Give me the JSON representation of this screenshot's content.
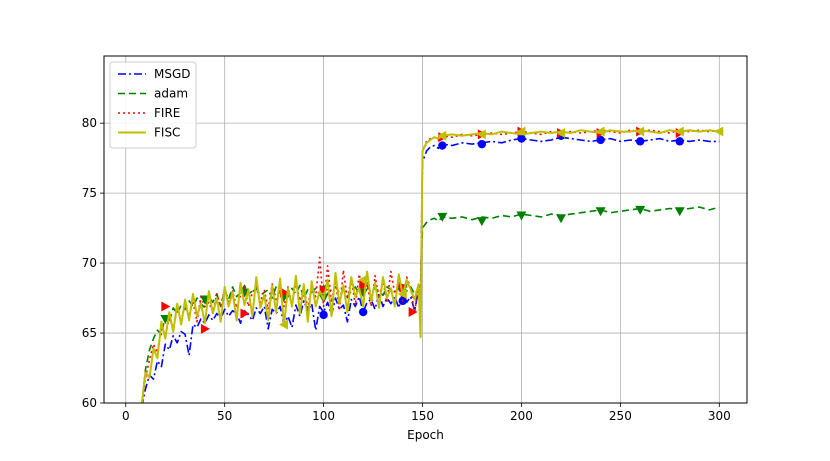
{
  "chart_data": {
    "type": "line",
    "title": "",
    "xlabel": "Epoch",
    "ylabel": "",
    "xlim": [
      -11,
      314
    ],
    "ylim": [
      60,
      84.8
    ],
    "xticks": [
      0,
      50,
      100,
      150,
      200,
      250,
      300
    ],
    "yticks": [
      60,
      65,
      70,
      75,
      80
    ],
    "grid": true,
    "legend_position": "top-left",
    "series": [
      {
        "name": "MSGD",
        "color": "#0000ff",
        "dash": "8,3,2,3",
        "marker": "circle",
        "x": [
          8,
          10,
          12,
          14,
          16,
          18,
          20,
          22,
          24,
          26,
          28,
          30,
          32,
          34,
          36,
          38,
          40,
          42,
          44,
          46,
          48,
          50,
          52,
          54,
          56,
          58,
          60,
          62,
          64,
          66,
          68,
          70,
          72,
          74,
          76,
          78,
          80,
          82,
          84,
          86,
          88,
          90,
          92,
          94,
          96,
          98,
          100,
          102,
          104,
          106,
          108,
          110,
          112,
          114,
          116,
          118,
          120,
          122,
          124,
          126,
          128,
          130,
          132,
          134,
          136,
          138,
          140,
          142,
          144,
          146,
          148,
          149,
          150,
          152,
          154,
          156,
          158,
          160,
          165,
          170,
          175,
          180,
          185,
          190,
          195,
          200,
          205,
          210,
          215,
          220,
          225,
          230,
          235,
          240,
          245,
          250,
          255,
          260,
          265,
          270,
          275,
          280,
          285,
          290,
          295,
          300
        ],
        "y": [
          59.7,
          61.0,
          62.0,
          61.7,
          63.0,
          62.6,
          64.2,
          63.8,
          64.8,
          64.3,
          65.1,
          64.9,
          63.4,
          65.6,
          65.4,
          66.0,
          65.7,
          66.3,
          65.9,
          66.4,
          66.0,
          66.7,
          66.2,
          66.6,
          66.4,
          65.7,
          66.6,
          66.3,
          65.9,
          66.8,
          66.4,
          66.9,
          65.3,
          66.7,
          66.4,
          66.9,
          65.6,
          66.2,
          65.4,
          67.0,
          66.2,
          67.3,
          66.6,
          67.1,
          65.2,
          66.9,
          66.5,
          67.2,
          66.3,
          67.5,
          66.7,
          67.0,
          65.8,
          67.4,
          66.9,
          67.6,
          66.5,
          67.2,
          67.4,
          66.7,
          67.8,
          66.9,
          67.5,
          67.1,
          67.6,
          66.8,
          67.9,
          67.2,
          67.6,
          66.6,
          68.1,
          67.8,
          77.2,
          78.0,
          78.3,
          78.4,
          78.2,
          78.5,
          78.4,
          78.6,
          78.5,
          78.6,
          78.7,
          78.6,
          78.8,
          78.9,
          78.8,
          78.7,
          78.8,
          79.0,
          78.9,
          78.8,
          78.7,
          78.8,
          78.9,
          78.7,
          78.8,
          78.7,
          78.8,
          78.9,
          78.7,
          78.8,
          78.7,
          78.8,
          78.7,
          78.7
        ],
        "markers_x": [
          100,
          120,
          140,
          160,
          180,
          200,
          220,
          240,
          260,
          280
        ],
        "markers_y": [
          66.3,
          66.5,
          67.3,
          78.4,
          78.5,
          78.9,
          79.1,
          78.8,
          78.7,
          78.7
        ]
      },
      {
        "name": "adam",
        "color": "#008000",
        "dash": "7,4",
        "marker": "triangle-down",
        "x": [
          8,
          10,
          12,
          14,
          16,
          18,
          20,
          22,
          24,
          26,
          28,
          30,
          32,
          34,
          36,
          38,
          40,
          42,
          44,
          46,
          48,
          50,
          52,
          54,
          56,
          58,
          60,
          62,
          64,
          66,
          68,
          70,
          72,
          74,
          76,
          78,
          80,
          82,
          84,
          86,
          88,
          90,
          92,
          94,
          96,
          98,
          100,
          102,
          104,
          106,
          108,
          110,
          112,
          114,
          116,
          118,
          120,
          122,
          124,
          126,
          128,
          130,
          132,
          134,
          136,
          138,
          140,
          142,
          144,
          146,
          148,
          149,
          150,
          152,
          154,
          156,
          158,
          160,
          165,
          170,
          175,
          180,
          185,
          190,
          195,
          200,
          205,
          210,
          215,
          220,
          225,
          230,
          235,
          240,
          245,
          250,
          255,
          260,
          265,
          270,
          275,
          280,
          285,
          290,
          295,
          300
        ],
        "y": [
          59.8,
          62.4,
          63.8,
          64.6,
          65.2,
          64.9,
          66.2,
          65.8,
          66.8,
          66.4,
          67.0,
          66.7,
          67.3,
          66.9,
          67.5,
          67.1,
          66.8,
          67.6,
          67.2,
          67.8,
          66.9,
          68.1,
          67.4,
          68.3,
          67.6,
          67.9,
          68.4,
          67.8,
          68.0,
          68.2,
          67.7,
          67.9,
          68.1,
          67.5,
          68.3,
          67.9,
          68.0,
          67.6,
          68.2,
          67.8,
          68.4,
          67.5,
          68.1,
          67.9,
          68.2,
          67.7,
          68.4,
          67.8,
          68.1,
          68.3,
          67.9,
          68.2,
          67.6,
          68.0,
          68.3,
          67.8,
          68.1,
          68.4,
          67.9,
          68.2,
          68.0,
          67.7,
          68.3,
          68.1,
          67.9,
          68.2,
          68.4,
          68.0,
          68.3,
          67.8,
          68.2,
          68.5,
          72.5,
          72.9,
          73.1,
          73.2,
          73.0,
          73.3,
          73.2,
          73.3,
          73.1,
          73.3,
          73.2,
          73.4,
          73.3,
          73.5,
          73.4,
          73.3,
          73.5,
          73.4,
          73.5,
          73.6,
          73.7,
          73.8,
          73.6,
          73.7,
          73.8,
          73.9,
          73.7,
          73.8,
          73.9,
          73.8,
          73.9,
          74.0,
          73.8,
          74.0
        ],
        "markers_x": [
          20,
          40,
          60,
          80,
          100,
          120,
          140,
          160,
          180,
          200,
          220,
          240,
          260,
          280
        ],
        "markers_y": [
          66.0,
          67.4,
          67.9,
          67.6,
          67.5,
          67.9,
          68.2,
          73.3,
          73.0,
          73.4,
          73.2,
          73.7,
          73.8,
          73.7
        ]
      },
      {
        "name": "FIRE",
        "color": "#ff0000",
        "dash": "2,3",
        "marker": "triangle-right",
        "x": [
          8,
          10,
          12,
          14,
          16,
          18,
          20,
          22,
          24,
          26,
          28,
          30,
          32,
          34,
          36,
          38,
          40,
          42,
          44,
          46,
          48,
          50,
          52,
          54,
          56,
          58,
          60,
          62,
          64,
          66,
          68,
          70,
          72,
          74,
          76,
          78,
          80,
          82,
          84,
          86,
          88,
          90,
          92,
          94,
          96,
          98,
          100,
          102,
          104,
          106,
          108,
          110,
          112,
          114,
          116,
          118,
          120,
          122,
          124,
          126,
          128,
          130,
          132,
          134,
          136,
          138,
          140,
          142,
          144,
          146,
          148,
          149,
          150,
          152,
          154,
          156,
          158,
          160,
          165,
          170,
          175,
          180,
          185,
          190,
          195,
          200,
          205,
          210,
          215,
          220,
          225,
          230,
          235,
          240,
          245,
          250,
          255,
          260,
          265,
          270,
          275,
          280,
          285,
          290,
          295,
          300
        ],
        "y": [
          59.7,
          61.8,
          63.1,
          64.2,
          63.6,
          65.4,
          64.8,
          66.1,
          65.3,
          66.7,
          65.9,
          67.0,
          66.2,
          67.3,
          65.8,
          67.6,
          66.9,
          67.2,
          66.5,
          67.8,
          66.9,
          68.2,
          67.1,
          68.0,
          66.8,
          67.7,
          68.4,
          66.9,
          67.9,
          68.3,
          67.2,
          68.1,
          66.7,
          68.5,
          67.4,
          68.0,
          66.9,
          68.3,
          67.1,
          68.6,
          67.3,
          68.2,
          66.8,
          68.4,
          67.6,
          70.4,
          66.9,
          69.8,
          67.2,
          68.7,
          66.6,
          69.5,
          67.4,
          68.9,
          67.0,
          69.2,
          67.8,
          68.6,
          66.9,
          69.1,
          67.5,
          68.8,
          67.2,
          69.4,
          67.8,
          68.5,
          67.3,
          69.0,
          68.2,
          66.4,
          68.6,
          67.5,
          78.0,
          78.7,
          78.9,
          79.0,
          78.8,
          79.1,
          79.0,
          79.2,
          79.1,
          79.2,
          79.3,
          79.2,
          79.3,
          79.4,
          79.3,
          79.2,
          79.4,
          79.3,
          79.4,
          79.3,
          79.4,
          79.5,
          79.4,
          79.3,
          79.5,
          79.4,
          79.5,
          79.4,
          79.3,
          79.5,
          79.4,
          79.5,
          79.4,
          79.5
        ],
        "markers_x": [
          20,
          40,
          60,
          80,
          100,
          120,
          140,
          145,
          160,
          180,
          200,
          220,
          240,
          260,
          280
        ],
        "markers_y": [
          66.9,
          65.3,
          66.4,
          67.9,
          68.1,
          68.4,
          68.3,
          66.5,
          79.0,
          79.2,
          79.4,
          79.3,
          79.3,
          79.4,
          79.3
        ]
      },
      {
        "name": "FISC",
        "color": "#bfbf00",
        "dash": "",
        "marker": "triangle-left",
        "x": [
          8,
          10,
          12,
          14,
          16,
          18,
          20,
          22,
          24,
          26,
          28,
          30,
          32,
          34,
          36,
          38,
          40,
          42,
          44,
          46,
          48,
          50,
          52,
          54,
          56,
          58,
          60,
          62,
          64,
          66,
          68,
          70,
          72,
          74,
          76,
          78,
          80,
          82,
          84,
          86,
          88,
          90,
          92,
          94,
          96,
          98,
          100,
          102,
          104,
          106,
          108,
          110,
          112,
          114,
          116,
          118,
          120,
          122,
          124,
          126,
          128,
          130,
          132,
          134,
          136,
          138,
          140,
          142,
          144,
          146,
          148,
          149,
          150,
          152,
          154,
          156,
          158,
          160,
          165,
          170,
          175,
          180,
          185,
          190,
          195,
          200,
          205,
          210,
          215,
          220,
          225,
          230,
          235,
          240,
          245,
          250,
          255,
          260,
          265,
          270,
          275,
          280,
          285,
          290,
          295,
          300
        ],
        "y": [
          59.8,
          62.2,
          61.8,
          63.9,
          63.2,
          65.8,
          64.6,
          66.5,
          65.1,
          67.1,
          65.6,
          67.4,
          65.9,
          67.8,
          66.2,
          67.1,
          65.7,
          68.0,
          66.4,
          67.5,
          65.8,
          68.3,
          66.9,
          67.9,
          65.9,
          68.6,
          67.0,
          68.1,
          66.2,
          69.0,
          66.8,
          67.7,
          65.9,
          68.4,
          66.5,
          68.9,
          65.6,
          68.2,
          66.9,
          69.1,
          66.4,
          68.5,
          65.8,
          68.7,
          66.9,
          68.0,
          67.4,
          68.8,
          66.2,
          69.3,
          67.1,
          68.4,
          66.5,
          69.0,
          67.6,
          68.2,
          66.9,
          69.4,
          67.3,
          68.6,
          66.8,
          69.0,
          67.5,
          68.2,
          66.9,
          69.2,
          67.7,
          68.8,
          68.1,
          67.4,
          68.5,
          64.7,
          78.0,
          78.6,
          78.8,
          79.0,
          78.9,
          79.1,
          79.2,
          79.1,
          79.2,
          79.3,
          79.2,
          79.4,
          79.3,
          79.2,
          79.3,
          79.4,
          79.3,
          79.4,
          79.3,
          79.5,
          79.4,
          79.3,
          79.5,
          79.4,
          79.4,
          79.5,
          79.4,
          79.3,
          79.5,
          79.4,
          79.5,
          79.4,
          79.5,
          79.4
        ],
        "markers_x": [
          80,
          120,
          140,
          160,
          180,
          200,
          220,
          240,
          260,
          280,
          300
        ],
        "markers_y": [
          65.6,
          68.8,
          67.8,
          79.1,
          79.2,
          79.4,
          79.3,
          79.4,
          79.4,
          79.4,
          79.4
        ]
      }
    ]
  }
}
